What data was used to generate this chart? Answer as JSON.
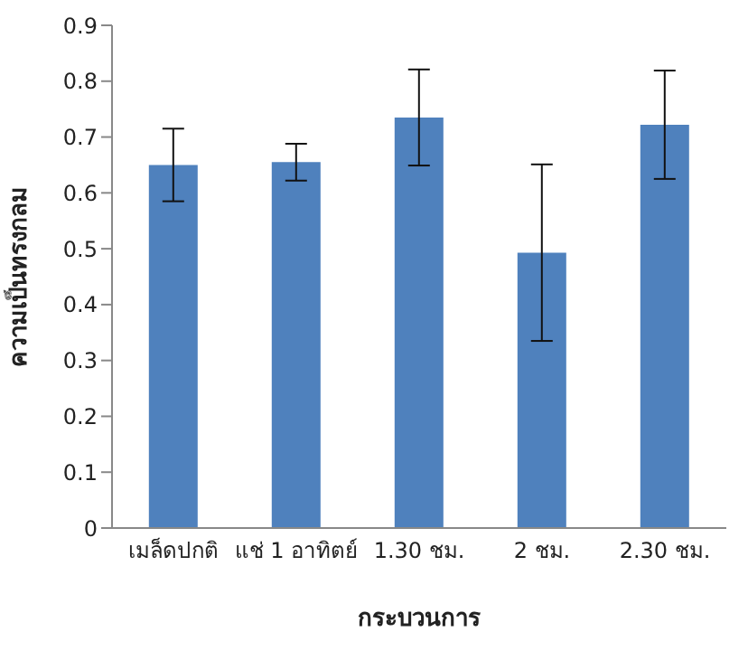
{
  "chart_data": {
    "type": "bar",
    "xlabel": "กระบวนการ",
    "ylabel": "ความเป็นทรงกลม",
    "categories": [
      "เมล็ดปกติ",
      "แช่ 1 อาทิตย์",
      "1.30 ชม.",
      "2 ชม.",
      "2.30 ชม."
    ],
    "values": [
      0.65,
      0.655,
      0.735,
      0.493,
      0.722
    ],
    "errors": [
      0.065,
      0.033,
      0.086,
      0.158,
      0.097
    ],
    "color": "#4f81bd",
    "ylim": [
      0,
      0.9
    ],
    "yticks": [
      0,
      0.1,
      0.2,
      0.3,
      0.4,
      0.5,
      0.6,
      0.7,
      0.8,
      0.9
    ],
    "grid": false,
    "legend": false
  }
}
